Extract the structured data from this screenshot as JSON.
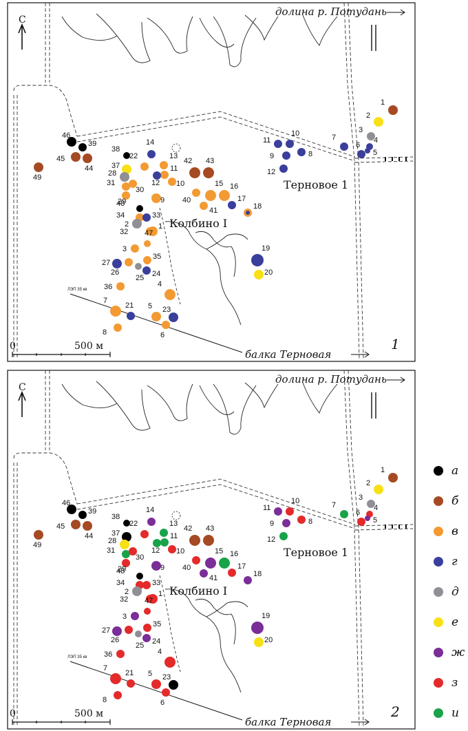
{
  "colors": {
    "a": "#000000",
    "b": "#a54a23",
    "v": "#f39a33",
    "g": "#3a3f9c",
    "d": "#8f8f95",
    "e": "#f7e016",
    "zh": "#7b2d98",
    "z": "#e42a2a",
    "i": "#18a34a"
  },
  "legend": [
    {
      "key": "a",
      "label": "а"
    },
    {
      "key": "b",
      "label": "б"
    },
    {
      "key": "v",
      "label": "в"
    },
    {
      "key": "g",
      "label": "г"
    },
    {
      "key": "d",
      "label": "д"
    },
    {
      "key": "e",
      "label": "е"
    },
    {
      "key": "zh",
      "label": "ж"
    },
    {
      "key": "z",
      "label": "з"
    },
    {
      "key": "i",
      "label": "и"
    }
  ],
  "maps": [
    {
      "panel_number": "1",
      "north": "С",
      "valley_label": "долина р. Потудань",
      "ravine_label": "балка Терновая",
      "scale_zero": "0",
      "scale_label": "500 м",
      "powerline_label": "ЛЭП 35 кв",
      "site_kolbino": "Колбино I",
      "site_ternovoe": "Терновое 1",
      "points": [
        {
          "n": "46",
          "c": "a"
        },
        {
          "n": "39",
          "c": "a"
        },
        {
          "n": "45",
          "c": "b"
        },
        {
          "n": "44",
          "c": "b"
        },
        {
          "n": "49",
          "c": "b"
        },
        {
          "n": "38",
          "c": "a"
        },
        {
          "n": "37",
          "c": "e"
        },
        {
          "n": "28",
          "c": "d"
        },
        {
          "n": "31",
          "c": "v"
        },
        {
          "n": "30",
          "c": "v"
        },
        {
          "n": "22",
          "c": "v"
        },
        {
          "n": "14",
          "c": "g"
        },
        {
          "n": "13",
          "c": "v"
        },
        {
          "n": "11",
          "c": "v"
        },
        {
          "n": "12",
          "c": "g"
        },
        {
          "n": "10",
          "c": "v"
        },
        {
          "n": "9",
          "c": "v"
        },
        {
          "n": "29",
          "c": "v"
        },
        {
          "n": "42",
          "c": "b"
        },
        {
          "n": "43",
          "c": "b"
        },
        {
          "n": "40",
          "c": "v"
        },
        {
          "n": "15",
          "c": "v"
        },
        {
          "n": "16",
          "c": "v"
        },
        {
          "n": "41",
          "c": "v"
        },
        {
          "n": "17",
          "c": "g"
        },
        {
          "n": "18",
          "c": "v"
        },
        {
          "n": "48",
          "c": "a"
        },
        {
          "n": "34",
          "c": "v"
        },
        {
          "n": "2",
          "c": "d"
        },
        {
          "n": "33",
          "c": "g"
        },
        {
          "n": "32",
          "c": "v"
        },
        {
          "n": "1",
          "c": "v"
        },
        {
          "n": "47",
          "c": "v"
        },
        {
          "n": "3",
          "c": "v"
        },
        {
          "n": "27",
          "c": "g"
        },
        {
          "n": "26",
          "c": "v"
        },
        {
          "n": "25",
          "c": "d"
        },
        {
          "n": "35",
          "c": "v"
        },
        {
          "n": "24",
          "c": "g"
        },
        {
          "n": "36",
          "c": "v"
        },
        {
          "n": "4",
          "c": "v"
        },
        {
          "n": "7",
          "c": "v"
        },
        {
          "n": "21",
          "c": "g"
        },
        {
          "n": "5",
          "c": "v"
        },
        {
          "n": "23",
          "c": "g"
        },
        {
          "n": "8",
          "c": "v"
        },
        {
          "n": "6",
          "c": "v"
        },
        {
          "n": "19",
          "c": "g"
        },
        {
          "n": "20",
          "c": "e"
        },
        {
          "n": "11",
          "c": "g"
        },
        {
          "n": "10",
          "c": "g"
        },
        {
          "n": "9",
          "c": "g"
        },
        {
          "n": "8",
          "c": "g"
        },
        {
          "n": "12",
          "c": "g"
        },
        {
          "n": "7",
          "c": "g"
        },
        {
          "n": "1",
          "c": "b"
        },
        {
          "n": "2",
          "c": "e"
        },
        {
          "n": "3",
          "c": "d"
        },
        {
          "n": "4",
          "c": "g"
        },
        {
          "n": "5",
          "c": "g"
        },
        {
          "n": "6",
          "c": "g"
        }
      ]
    },
    {
      "panel_number": "2",
      "north": "С",
      "valley_label": "долина р. Потудань",
      "ravine_label": "балка Терновая",
      "scale_zero": "0",
      "scale_label": "500 м",
      "powerline_label": "ЛЭП 35 кв",
      "site_kolbino": "Колбино I",
      "site_ternovoe": "Терновое 1",
      "points": [
        {
          "n": "46",
          "c": "a"
        },
        {
          "n": "39",
          "c": "a"
        },
        {
          "n": "45",
          "c": "b"
        },
        {
          "n": "44",
          "c": "b"
        },
        {
          "n": "49",
          "c": "b"
        },
        {
          "n": "38",
          "c": "a"
        },
        {
          "n": "37",
          "c": "a"
        },
        {
          "n": "28",
          "c": "e"
        },
        {
          "n": "31",
          "c": "i"
        },
        {
          "n": "30",
          "c": "z"
        },
        {
          "n": "22",
          "c": "z"
        },
        {
          "n": "14",
          "c": "zh"
        },
        {
          "n": "13",
          "c": "i"
        },
        {
          "n": "11",
          "c": "i"
        },
        {
          "n": "12",
          "c": "i"
        },
        {
          "n": "10",
          "c": "z"
        },
        {
          "n": "9",
          "c": "zh"
        },
        {
          "n": "29",
          "c": "z"
        },
        {
          "n": "42",
          "c": "b"
        },
        {
          "n": "43",
          "c": "b"
        },
        {
          "n": "40",
          "c": "z"
        },
        {
          "n": "15",
          "c": "zh"
        },
        {
          "n": "16",
          "c": "i"
        },
        {
          "n": "41",
          "c": "zh"
        },
        {
          "n": "17",
          "c": "z"
        },
        {
          "n": "18",
          "c": "zh"
        },
        {
          "n": "48",
          "c": "a"
        },
        {
          "n": "34",
          "c": "z"
        },
        {
          "n": "2",
          "c": "d"
        },
        {
          "n": "33",
          "c": "z"
        },
        {
          "n": "32",
          "c": "z"
        },
        {
          "n": "1",
          "c": "z"
        },
        {
          "n": "47",
          "c": "z"
        },
        {
          "n": "3",
          "c": "zh"
        },
        {
          "n": "27",
          "c": "zh"
        },
        {
          "n": "26",
          "c": "z"
        },
        {
          "n": "25",
          "c": "d"
        },
        {
          "n": "35",
          "c": "z"
        },
        {
          "n": "24",
          "c": "zh"
        },
        {
          "n": "36",
          "c": "z"
        },
        {
          "n": "4",
          "c": "z"
        },
        {
          "n": "7",
          "c": "z"
        },
        {
          "n": "21",
          "c": "z"
        },
        {
          "n": "5",
          "c": "z"
        },
        {
          "n": "23",
          "c": "a"
        },
        {
          "n": "8",
          "c": "z"
        },
        {
          "n": "6",
          "c": "z"
        },
        {
          "n": "19",
          "c": "zh"
        },
        {
          "n": "20",
          "c": "e"
        },
        {
          "n": "11",
          "c": "zh"
        },
        {
          "n": "10",
          "c": "z"
        },
        {
          "n": "9",
          "c": "zh"
        },
        {
          "n": "8",
          "c": "z"
        },
        {
          "n": "12",
          "c": "i"
        },
        {
          "n": "7",
          "c": "i"
        },
        {
          "n": "1",
          "c": "b"
        },
        {
          "n": "2",
          "c": "e"
        },
        {
          "n": "3",
          "c": "d"
        },
        {
          "n": "4",
          "c": "z"
        },
        {
          "n": "5",
          "c": "zh"
        },
        {
          "n": "6",
          "c": "z"
        }
      ]
    }
  ]
}
